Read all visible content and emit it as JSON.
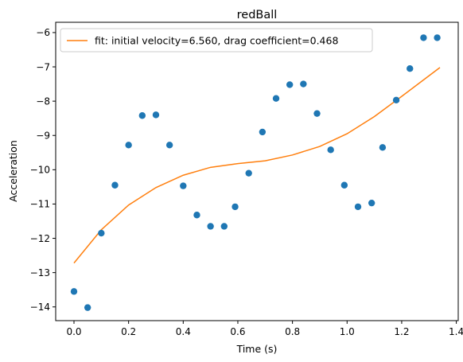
{
  "chart_data": {
    "type": "scatter",
    "title": "redBall",
    "xlabel": "Time (s)",
    "ylabel": "Acceleration",
    "xlim": [
      -0.067,
      1.407
    ],
    "ylim": [
      -14.4,
      -5.7
    ],
    "xticks": [
      0.0,
      0.2,
      0.4,
      0.6,
      0.8,
      1.0,
      1.2,
      1.4
    ],
    "xtick_labels": [
      "0.0",
      "0.2",
      "0.4",
      "0.6",
      "0.8",
      "1.0",
      "1.2",
      "1.4"
    ],
    "yticks": [
      -14,
      -13,
      -12,
      -11,
      -10,
      -9,
      -8,
      -7,
      -6
    ],
    "ytick_labels": [
      "−14",
      "−13",
      "−12",
      "−11",
      "−10",
      "−9",
      "−8",
      "−7",
      "−6"
    ],
    "grid": false,
    "legend_position": "upper-left",
    "colors": {
      "scatter": "#1f77b4",
      "fit": "#ff7f0e"
    },
    "scatter": {
      "x": [
        0.0,
        0.05,
        0.1,
        0.15,
        0.2,
        0.25,
        0.3,
        0.35,
        0.4,
        0.45,
        0.5,
        0.55,
        0.59,
        0.64,
        0.69,
        0.74,
        0.79,
        0.84,
        0.89,
        0.94,
        0.99,
        1.04,
        1.09,
        1.13,
        1.18,
        1.23,
        1.28,
        1.33
      ],
      "y": [
        -13.55,
        -14.02,
        -11.85,
        -10.45,
        -9.28,
        -8.42,
        -8.4,
        -9.28,
        -10.47,
        -11.32,
        -11.65,
        -11.65,
        -11.08,
        -10.1,
        -8.9,
        -7.92,
        -7.52,
        -7.5,
        -8.36,
        -9.42,
        -10.45,
        -11.08,
        -10.97,
        -9.35,
        -7.97,
        -7.05,
        -6.15,
        -6.15
      ]
    },
    "series": [
      {
        "name": "fit: initial velocity=6.560, drag coefficient=0.468",
        "x": [
          0.0,
          0.1,
          0.2,
          0.3,
          0.4,
          0.5,
          0.6,
          0.7,
          0.8,
          0.9,
          1.0,
          1.1,
          1.2,
          1.34
        ],
        "y": [
          -12.72,
          -11.75,
          -11.03,
          -10.52,
          -10.16,
          -9.93,
          -9.82,
          -9.74,
          -9.57,
          -9.32,
          -8.95,
          -8.45,
          -7.86,
          -7.02
        ]
      }
    ]
  }
}
